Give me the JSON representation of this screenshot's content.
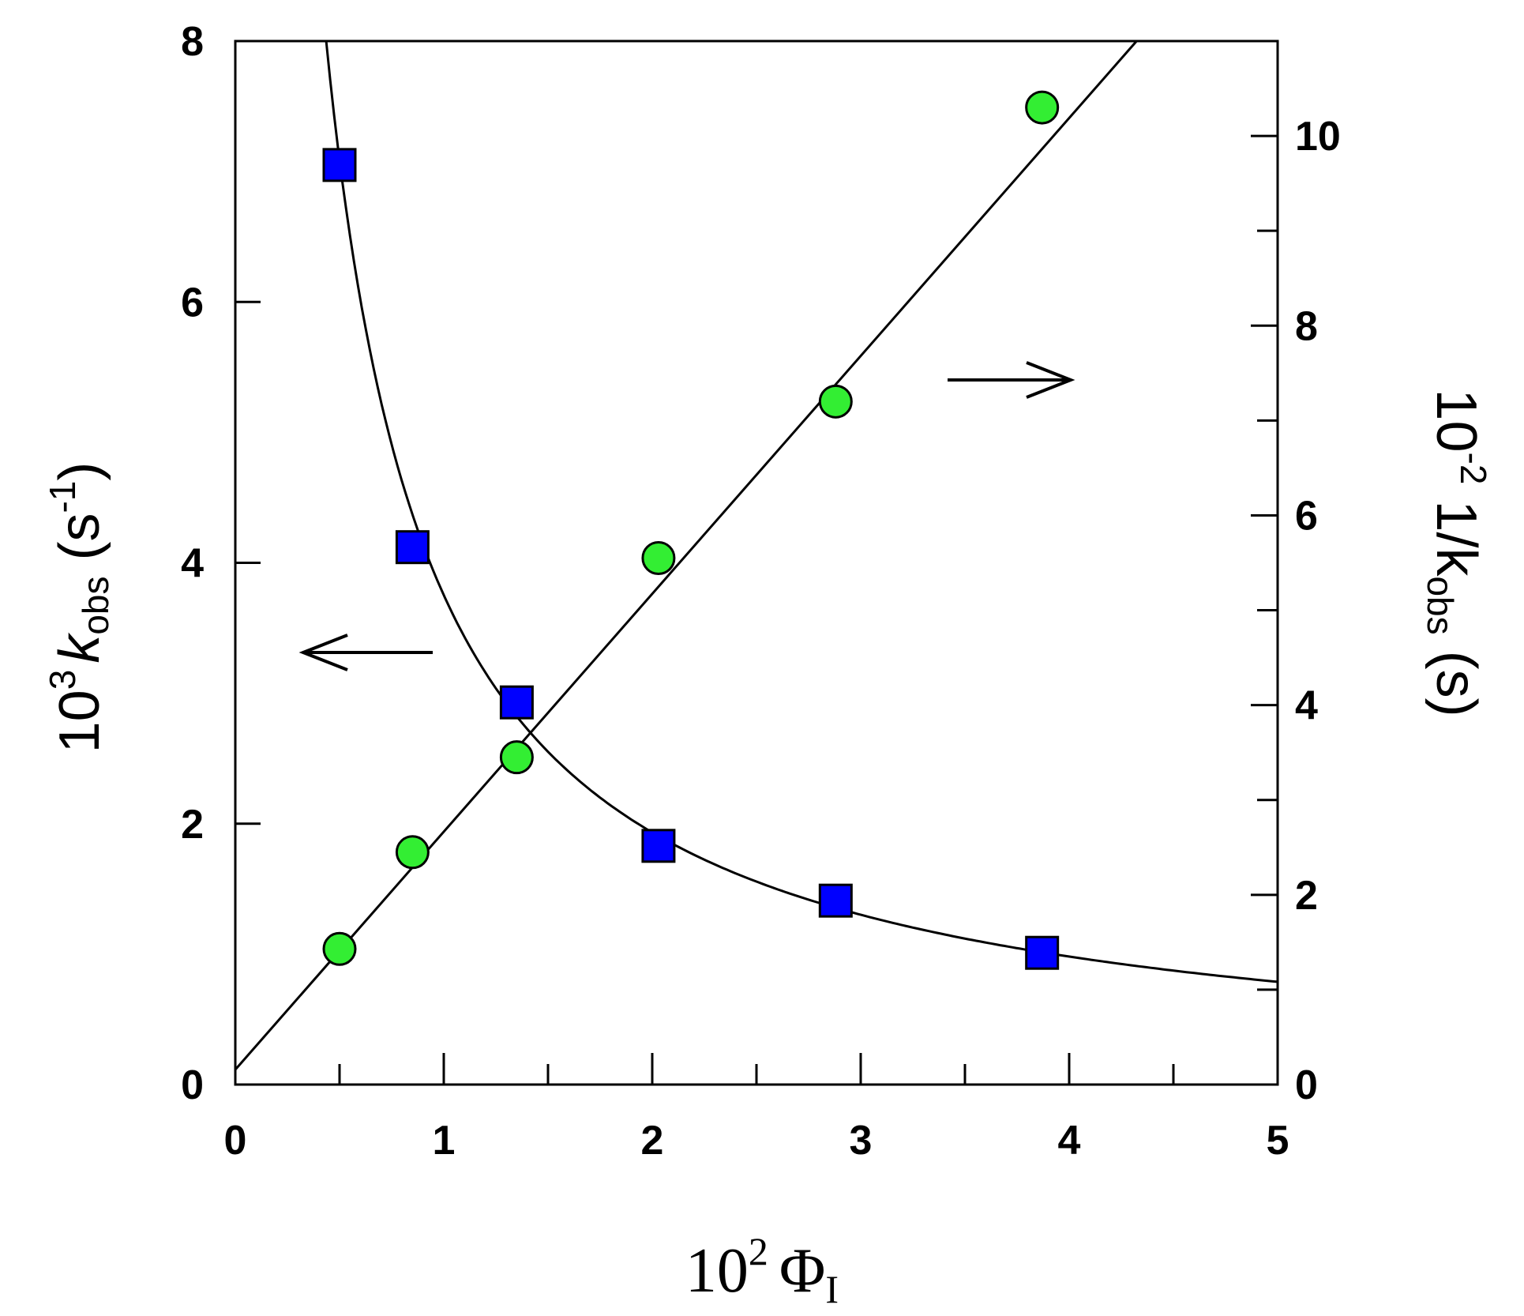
{
  "chart_data": {
    "type": "scatter",
    "x_axis": {
      "label_base": "10",
      "label_exp": "2",
      "label_symbol": "Φ",
      "label_sub": "I",
      "range": [
        0,
        5
      ],
      "ticks": [
        "0",
        "1",
        "2",
        "3",
        "4",
        "5"
      ],
      "tick_values": [
        0,
        1,
        2,
        3,
        4,
        5
      ],
      "minor_step": 0.5
    },
    "y_left": {
      "label_base": "10",
      "label_exp": "3",
      "label_k": "k",
      "label_sub": "obs",
      "label_unit_open": " (s",
      "label_unit_exp": "-1",
      "label_unit_close": ")",
      "range": [
        0,
        8
      ],
      "ticks": [
        "0",
        "2",
        "4",
        "6",
        "8"
      ],
      "tick_values": [
        0,
        2,
        4,
        6,
        8
      ]
    },
    "y_right": {
      "label_prefix": "10",
      "label_exp": "-2",
      "label_main": " 1/k",
      "label_sub": "obs",
      "label_unit": " (s)",
      "range": [
        0,
        11
      ],
      "ticks": [
        "0",
        "2",
        "4",
        "6",
        "8",
        "10"
      ],
      "tick_values": [
        0,
        2,
        4,
        6,
        8,
        10
      ],
      "minor_step": 1
    },
    "series": [
      {
        "marker": "square",
        "color": "#0000ff",
        "axis": "left",
        "x": [
          0.5,
          0.85,
          1.35,
          2.03,
          2.88,
          3.87
        ],
        "y": [
          7.05,
          4.12,
          2.93,
          1.83,
          1.41,
          1.01
        ]
      },
      {
        "marker": "circle",
        "color": "#33ee33",
        "axis": "right",
        "x": [
          0.5,
          0.85,
          1.35,
          2.03,
          2.88,
          3.87
        ],
        "y": [
          1.43,
          2.45,
          3.45,
          5.55,
          7.2,
          10.3
        ]
      }
    ],
    "fits": [
      {
        "axis": "left",
        "form": "1/(a+b*x)",
        "a": 0.0157,
        "b": 0.2508
      },
      {
        "axis": "right",
        "form": "a+b*x",
        "a": 0.157,
        "b": 2.508
      }
    ],
    "arrows": [
      {
        "direction": "left",
        "points_to": "left-axis"
      },
      {
        "direction": "right",
        "points_to": "right-axis"
      }
    ]
  }
}
